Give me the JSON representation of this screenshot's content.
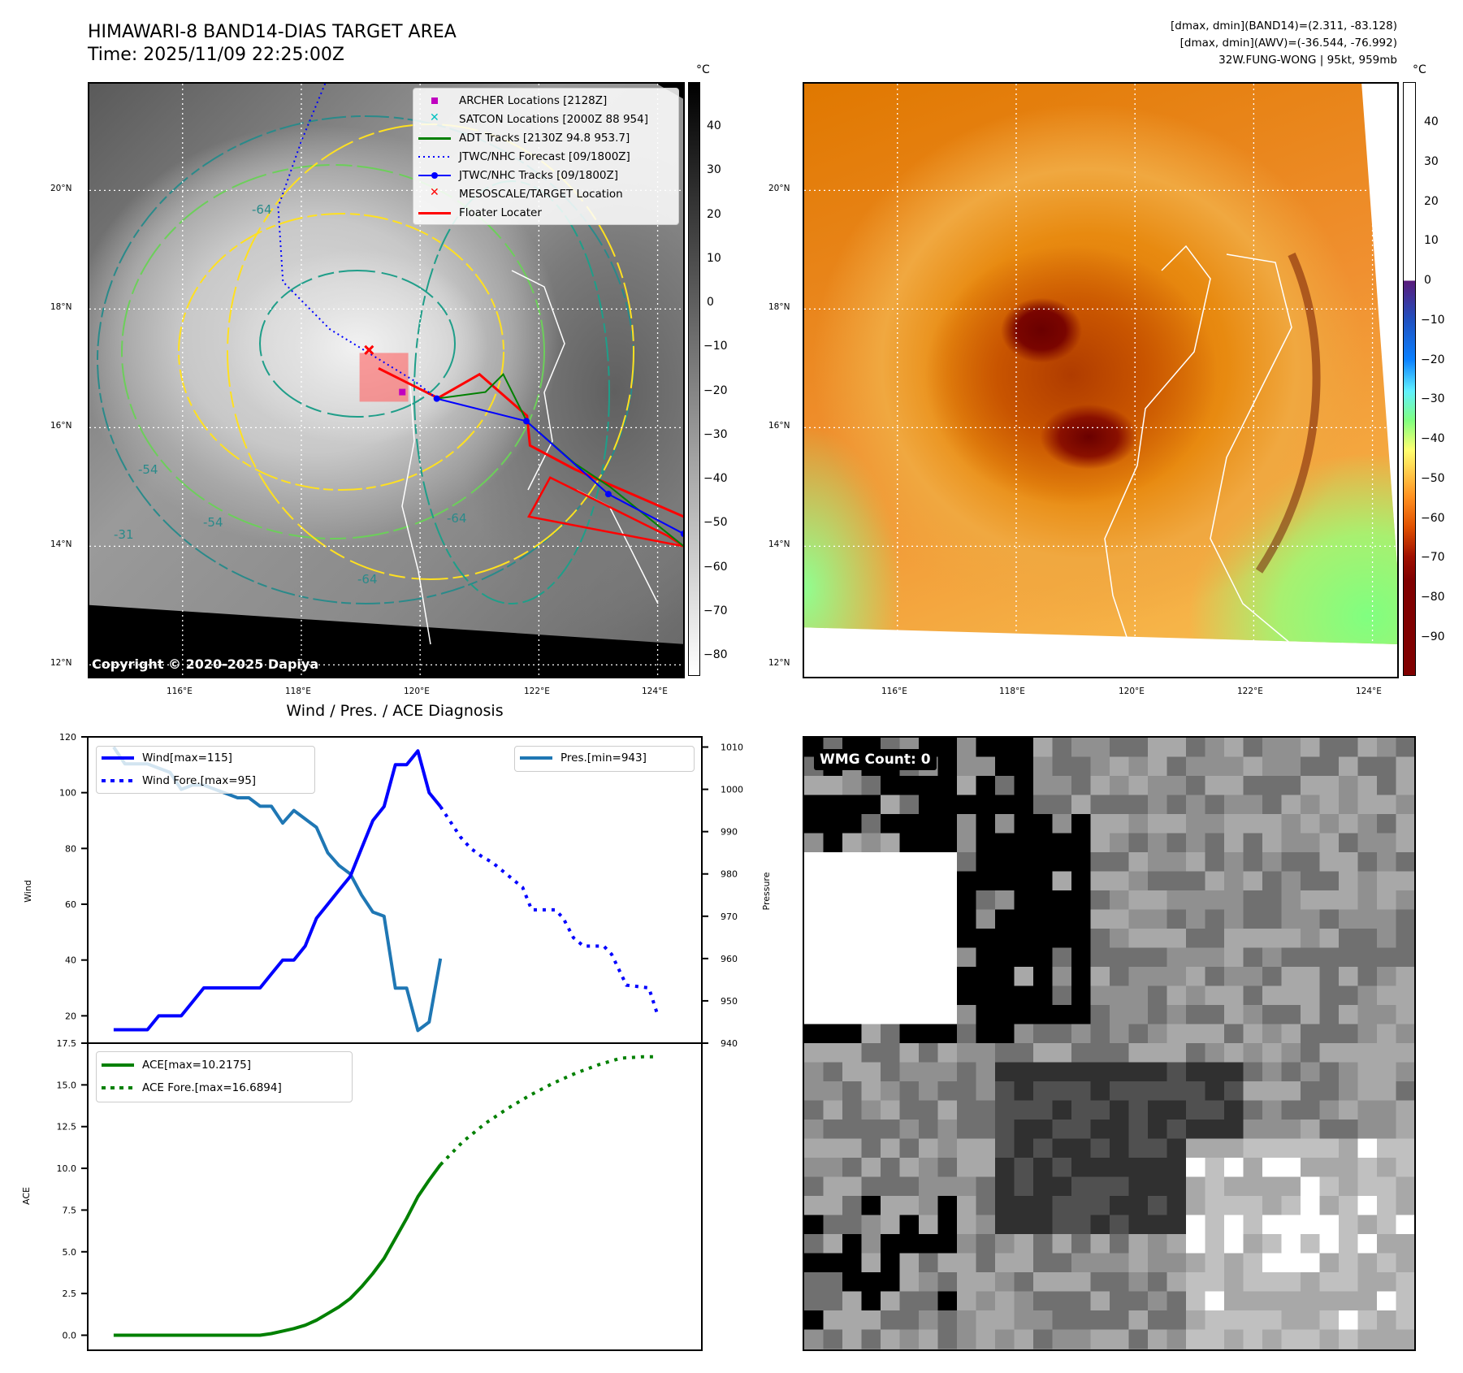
{
  "header": {
    "title_line1": "HIMAWARI-8 BAND14-DIAS TARGET AREA",
    "title_line2": "Time: 2025/11/09 22:25:00Z",
    "info_line1": "[dmax, dmin](BAND14)=(2.311, -83.128)",
    "info_line2": "[dmax, dmin](AWV)=(-36.544, -76.992)",
    "info_line3": "32W.FUNG-WONG | 95kt, 959mb"
  },
  "maps": {
    "lat_labels": [
      "20°N",
      "18°N",
      "16°N",
      "14°N",
      "12°N"
    ],
    "lon_labels": [
      "116°E",
      "118°E",
      "120°E",
      "122°E",
      "124°E"
    ],
    "copyright": "Copyright © 2020-2025 Dapiya",
    "left_colorbar": {
      "unit": "°C",
      "ticks": [
        "40",
        "30",
        "20",
        "10",
        "0",
        "−10",
        "−20",
        "−30",
        "−40",
        "−50",
        "−60",
        "−70",
        "−80"
      ]
    },
    "right_colorbar": {
      "unit": "°C",
      "ticks": [
        "40",
        "30",
        "20",
        "10",
        "0",
        "−10",
        "−20",
        "−30",
        "−40",
        "−50",
        "−60",
        "−70",
        "−80",
        "−90"
      ]
    },
    "legend": [
      {
        "label": "ARCHER Locations [2128Z]",
        "color": "#c000c0",
        "symbol": "square"
      },
      {
        "label": "SATCON Locations [2000Z 88 954]",
        "color": "#00c0c0",
        "symbol": "x"
      },
      {
        "label": "ADT Tracks [2130Z 94.8 953.7]",
        "color": "#008000",
        "symbol": "line"
      },
      {
        "label": "JTWC/NHC Forecast [09/1800Z]",
        "color": "#0000ff",
        "symbol": "dotted"
      },
      {
        "label": "JTWC/NHC Tracks [09/1800Z]",
        "color": "#0000ff",
        "symbol": "line-dot"
      },
      {
        "label": "MESOSCALE/TARGET Location",
        "color": "#ff0000",
        "symbol": "x"
      },
      {
        "label": "Floater Locater",
        "color": "#ff0000",
        "symbol": "line"
      }
    ],
    "contour_labels": [
      "-64",
      "-54",
      "-31",
      "-64",
      "-54",
      "-64"
    ],
    "jtwc_track": [
      [
        120.28,
        16.49
      ],
      [
        121.79,
        16.11
      ],
      [
        123.17,
        14.88
      ],
      [
        124.44,
        14.21
      ]
    ],
    "jtwc_forecast": [
      [
        120.28,
        16.49
      ],
      [
        119.9,
        16.79
      ],
      [
        118.48,
        17.66
      ],
      [
        117.69,
        18.46
      ],
      [
        117.61,
        19.72
      ],
      [
        118.0,
        20.83
      ],
      [
        118.4,
        21.8
      ]
    ],
    "adt_track": [
      [
        120.28,
        16.49
      ],
      [
        121.1,
        16.6
      ],
      [
        121.4,
        16.9
      ],
      [
        121.8,
        16.1
      ],
      [
        122.6,
        15.4
      ],
      [
        123.2,
        15.0
      ],
      [
        124.44,
        14.0
      ]
    ],
    "target_location": [
      119.14,
      17.31
    ],
    "archer_location": [
      119.7,
      16.6
    ]
  },
  "wmg_panel": {
    "count_label": "WMG Count: 0"
  },
  "chart_data": [
    {
      "type": "line",
      "title": "Wind / Pres. / ACE Diagnosis",
      "ylabel": "Wind",
      "ylabel_right": "Pressure",
      "xlim": [
        -2.3,
        52.2
      ],
      "ylim": [
        10.2,
        120
      ],
      "ylim_right": [
        940,
        1012.4
      ],
      "yticks": [
        20,
        40,
        60,
        80,
        100,
        120
      ],
      "yticks_right": [
        940,
        950,
        960,
        970,
        980,
        990,
        1000,
        1010
      ],
      "series": [
        {
          "name": "Wind[max=115]",
          "axis": "left",
          "style": "solid",
          "color": "#0000ff",
          "x": [
            0,
            1,
            2,
            3,
            4,
            5,
            6,
            7,
            8,
            9,
            10,
            11,
            12,
            13,
            14,
            15,
            16,
            17,
            18,
            19,
            20,
            21,
            22,
            23,
            24,
            25,
            26,
            27,
            28,
            29
          ],
          "y": [
            15,
            15,
            15,
            15,
            20,
            20,
            20,
            25,
            30,
            30,
            30,
            30,
            30,
            30,
            35,
            40,
            40,
            45,
            55,
            60,
            65,
            70,
            80,
            90,
            95,
            110,
            110,
            115,
            100,
            95
          ]
        },
        {
          "name": "Wind Fore.[max=95]",
          "axis": "left",
          "style": "dotted",
          "color": "#0000ff",
          "x": [
            29,
            30.8,
            31.7,
            32.7,
            33.6,
            34.5,
            35.4,
            36.3,
            37.1,
            39.2,
            39.9,
            40.8,
            41.7,
            43.5,
            44.2,
            45.5,
            47.5,
            48.3
          ],
          "y": [
            95,
            84,
            80,
            77,
            75,
            72,
            69,
            66,
            58,
            58,
            55,
            48,
            45,
            45,
            42,
            31,
            30,
            20
          ]
        },
        {
          "name": "Pres.[min=943]",
          "axis": "right",
          "style": "solid",
          "color": "#1f77b4",
          "x": [
            0,
            1,
            2,
            3,
            4,
            5,
            6,
            7,
            8,
            9,
            10,
            11,
            12,
            13,
            14,
            15,
            16,
            17,
            18,
            19,
            20,
            21,
            22,
            23,
            24,
            25,
            26,
            27,
            28,
            29
          ],
          "y": [
            1010,
            1006,
            1006,
            1006,
            1005,
            1004,
            1000,
            1001,
            1001,
            1000,
            999,
            998,
            998,
            996,
            996,
            992,
            995,
            993,
            991,
            985,
            982,
            980,
            975,
            971,
            970,
            953,
            953,
            943,
            945,
            960
          ]
        }
      ],
      "legend_position": [
        "upper left",
        "upper right"
      ]
    },
    {
      "type": "line",
      "ylabel": "ACE",
      "xlim": [
        -2.3,
        52.2
      ],
      "ylim": [
        -0.9,
        17.5
      ],
      "yticks": [
        0.0,
        2.5,
        5.0,
        7.5,
        10.0,
        12.5,
        15.0,
        17.5
      ],
      "ytick_labels": [
        "0.0",
        "2.5",
        "5.0",
        "7.5",
        "10.0",
        "12.5",
        "15.0",
        "17.5"
      ],
      "series": [
        {
          "name": "ACE[max=10.2175]",
          "style": "solid",
          "color": "#008000",
          "x": [
            0,
            1,
            2,
            3,
            4,
            5,
            6,
            7,
            8,
            9,
            10,
            11,
            12,
            13,
            14,
            15,
            16,
            17,
            18,
            19,
            20,
            21,
            22,
            23,
            24,
            25,
            26,
            27,
            28,
            29
          ],
          "y": [
            0,
            0,
            0,
            0,
            0,
            0,
            0,
            0,
            0,
            0,
            0,
            0,
            0,
            0,
            0.1,
            0.25,
            0.4,
            0.6,
            0.9,
            1.3,
            1.7,
            2.2,
            2.9,
            3.7,
            4.6,
            5.8,
            7.0,
            8.3,
            9.3,
            10.2175
          ]
        },
        {
          "name": "ACE Fore.[max=16.6894]",
          "style": "dotted",
          "color": "#008000",
          "x": [
            29,
            31,
            33,
            35,
            37,
            39,
            41,
            43,
            45,
            47,
            48.3
          ],
          "y": [
            10.2175,
            11.6,
            12.7,
            13.6,
            14.4,
            15.1,
            15.7,
            16.2,
            16.6,
            16.6894,
            16.6894
          ]
        }
      ],
      "legend_position": "upper left"
    }
  ]
}
